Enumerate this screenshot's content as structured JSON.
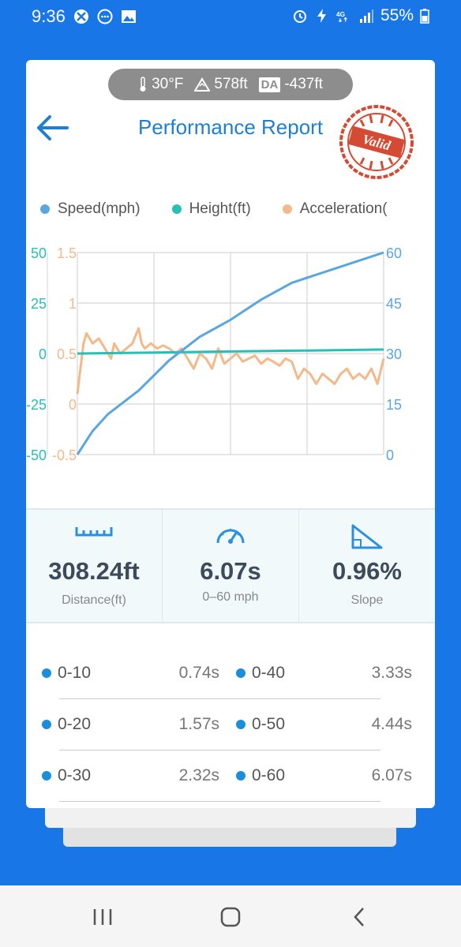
{
  "status_bar": {
    "time": "9:36",
    "battery": "55%",
    "icons_left": [
      "xbox-icon",
      "messenger-icon",
      "gallery-icon"
    ],
    "icons_right": [
      "alarm-icon",
      "flash-icon",
      "4g-icon",
      "signal-icon",
      "battery-icon"
    ]
  },
  "environment": {
    "temperature": "30°F",
    "altitude": "578ft",
    "da_label": "DA",
    "density_altitude": "-437ft"
  },
  "header": {
    "title": "Performance Report",
    "stamp_text": "Valid"
  },
  "legend": [
    {
      "label": "Speed(mph)",
      "color": "#5aa7e0"
    },
    {
      "label": "Height(ft)",
      "color": "#26c0b8"
    },
    {
      "label": "Acceleration(",
      "color": "#f4b98a"
    }
  ],
  "chart_data": {
    "type": "line",
    "series": [
      {
        "name": "Speed(mph)",
        "axis": "right",
        "color": "#5aa7e0",
        "x": [
          0,
          0.05,
          0.1,
          0.2,
          0.3,
          0.4,
          0.5,
          0.6,
          0.7,
          0.8,
          0.9,
          1.0
        ],
        "values": [
          0,
          7,
          12,
          19,
          28,
          35,
          40,
          46,
          51,
          54,
          57,
          60
        ]
      },
      {
        "name": "Height(ft)",
        "axis": "left-outer",
        "color": "#26c0b8",
        "x": [
          0,
          0.25,
          0.5,
          0.75,
          1.0
        ],
        "values": [
          0,
          0.5,
          1,
          1.5,
          2
        ]
      },
      {
        "name": "Acceleration(",
        "axis": "left-inner",
        "color": "#f4b98a",
        "x": [
          0,
          0.02,
          0.03,
          0.05,
          0.07,
          0.09,
          0.11,
          0.12,
          0.14,
          0.16,
          0.18,
          0.2,
          0.21,
          0.22,
          0.24,
          0.26,
          0.28,
          0.3,
          0.32,
          0.34,
          0.36,
          0.38,
          0.4,
          0.42,
          0.44,
          0.46,
          0.48,
          0.5,
          0.52,
          0.54,
          0.56,
          0.58,
          0.6,
          0.62,
          0.64,
          0.66,
          0.68,
          0.7,
          0.72,
          0.74,
          0.76,
          0.78,
          0.8,
          0.82,
          0.84,
          0.86,
          0.88,
          0.9,
          0.92,
          0.94,
          0.96,
          0.98,
          1.0
        ],
        "values": [
          0.1,
          0.6,
          0.7,
          0.6,
          0.65,
          0.55,
          0.45,
          0.6,
          0.5,
          0.55,
          0.6,
          0.75,
          0.6,
          0.55,
          0.6,
          0.55,
          0.58,
          0.55,
          0.5,
          0.55,
          0.45,
          0.35,
          0.5,
          0.45,
          0.35,
          0.55,
          0.4,
          0.45,
          0.5,
          0.42,
          0.45,
          0.48,
          0.4,
          0.45,
          0.42,
          0.38,
          0.45,
          0.42,
          0.25,
          0.35,
          0.3,
          0.2,
          0.3,
          0.25,
          0.2,
          0.3,
          0.35,
          0.25,
          0.3,
          0.25,
          0.35,
          0.2,
          0.45
        ]
      }
    ],
    "axes": {
      "left_outer": {
        "ticks": [
          "50",
          "25",
          "0",
          "-25",
          "-50"
        ],
        "color": "#26c0b8"
      },
      "left_inner": {
        "ticks": [
          "1.5",
          "1",
          "0.5",
          "0",
          "-0.5"
        ],
        "color": "#f4b98a"
      },
      "right": {
        "ticks": [
          "60",
          "45",
          "30",
          "15",
          "0"
        ],
        "color": "#5aa7e0",
        "ylim": [
          0,
          60
        ]
      }
    },
    "grid": true
  },
  "stats": [
    {
      "icon": "ruler-icon",
      "value": "308.24ft",
      "label": "Distance(ft)"
    },
    {
      "icon": "speedometer-icon",
      "value": "6.07s",
      "label": "0–60 mph"
    },
    {
      "icon": "slope-icon",
      "value": "0.96%",
      "label": "Slope"
    }
  ],
  "splits": [
    [
      {
        "label": "0-10",
        "value": "0.74s"
      },
      {
        "label": "0-40",
        "value": "3.33s"
      }
    ],
    [
      {
        "label": "0-20",
        "value": "1.57s"
      },
      {
        "label": "0-50",
        "value": "4.44s"
      }
    ],
    [
      {
        "label": "0-30",
        "value": "2.32s"
      },
      {
        "label": "0-60",
        "value": "6.07s"
      }
    ]
  ],
  "nav": [
    "recent-apps-icon",
    "home-icon",
    "back-nav-icon"
  ]
}
